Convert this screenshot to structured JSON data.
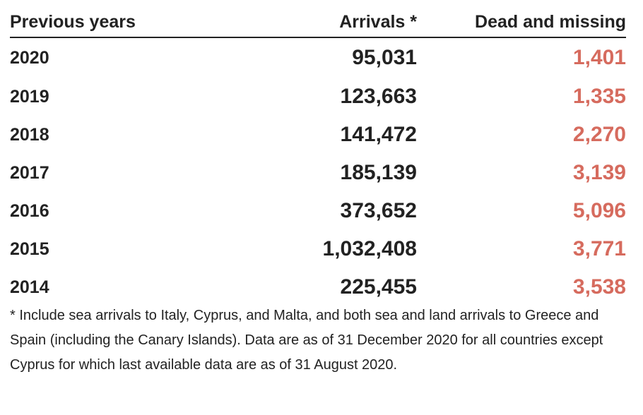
{
  "colors": {
    "text": "#222222",
    "dead_missing": "#d66b5e"
  },
  "chart_data": {
    "type": "table",
    "columns": [
      "Previous years",
      "Arrivals *",
      "Dead and missing"
    ],
    "rows": [
      {
        "year": "2020",
        "arrivals": "95,031",
        "dead_missing": "1,401"
      },
      {
        "year": "2019",
        "arrivals": "123,663",
        "dead_missing": "1,335"
      },
      {
        "year": "2018",
        "arrivals": "141,472",
        "dead_missing": "2,270"
      },
      {
        "year": "2017",
        "arrivals": "185,139",
        "dead_missing": "3,139"
      },
      {
        "year": "2016",
        "arrivals": "373,652",
        "dead_missing": "5,096"
      },
      {
        "year": "2015",
        "arrivals": "1,032,408",
        "dead_missing": "3,771"
      },
      {
        "year": "2014",
        "arrivals": "225,455",
        "dead_missing": "3,538"
      }
    ],
    "footnote": "* Include sea arrivals to Italy, Cyprus, and Malta, and both sea and land arrivals to Greece and Spain (including the Canary Islands). Data are as of 31 December 2020 for all countries except Cyprus for which last available data are as of 31 August 2020."
  }
}
